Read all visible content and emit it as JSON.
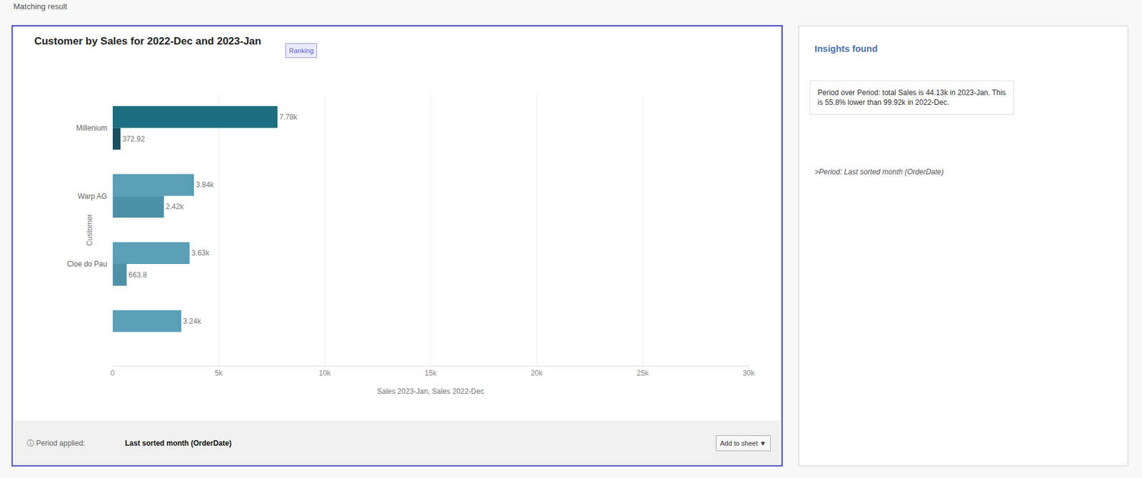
{
  "chart_data": {
    "type": "bar",
    "orientation": "horizontal",
    "title": "Customer by Sales for 2022-Dec and 2023-Jan",
    "xlabel": "Sales 2023-Jan, Sales 2022-Dec",
    "ylabel": "Customer",
    "categories": [
      "Millenium",
      "Warp AG",
      "Cloe do Pau",
      null
    ],
    "series": [
      {
        "colors": [
          "#1a6e7e",
          "#5a9fb5",
          "#5a9fb5",
          "#5a9fb5"
        ],
        "values": [
          7780,
          3840,
          3630,
          3240
        ],
        "value_labels": [
          "7.78k",
          "3.84k",
          "3.63k",
          "3.24k"
        ]
      },
      {
        "colors": [
          "#1a5060",
          "#4d91a8",
          "#4d91a8",
          "#4d91a8"
        ],
        "values": [
          372.92,
          2420,
          663.8,
          0
        ],
        "value_labels": [
          "372.92",
          "2.42k",
          "663.8",
          null
        ]
      }
    ],
    "xlim": [
      0,
      30000
    ],
    "xticks": [
      0,
      {
        "value": 5000,
        "label": "5k"
      },
      {
        "value": 10000,
        "label": "10k"
      },
      {
        "value": 15000,
        "label": "15k"
      },
      {
        "value": 20000,
        "label": "20k"
      },
      {
        "value": 25000,
        "label": "25k"
      },
      {
        "value": 30000,
        "label": "30k"
      }
    ],
    "grid": true,
    "data_labels": true,
    "annotations": [
      "Matching result",
      "Ranking",
      "Insights found",
      "Period over Period: total Sales is 44.13k in 2023-Jan. This\nis 55.8% lower than 99.92k in 2022-Dec.",
      ">Period: Last sorted month (OrderDate)",
      "ⓘ Period applied:",
      "Last sorted month (OrderDate)",
      "Add to sheet ▼"
    ]
  }
}
